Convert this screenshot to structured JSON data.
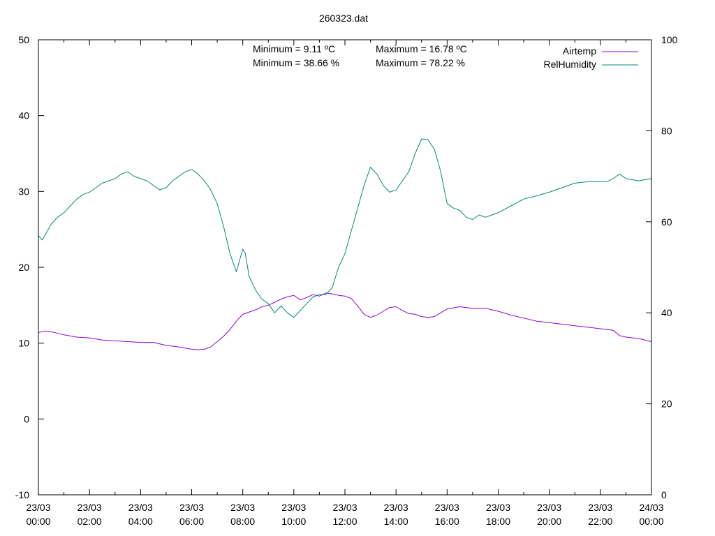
{
  "chart_data": {
    "type": "line",
    "title": "260323.dat",
    "x_ticks": [
      {
        "hours": 0,
        "date": "23/03",
        "time": "00:00"
      },
      {
        "hours": 2,
        "date": "23/03",
        "time": "02:00"
      },
      {
        "hours": 4,
        "date": "23/03",
        "time": "04:00"
      },
      {
        "hours": 6,
        "date": "23/03",
        "time": "06:00"
      },
      {
        "hours": 8,
        "date": "23/03",
        "time": "08:00"
      },
      {
        "hours": 10,
        "date": "23/03",
        "time": "10:00"
      },
      {
        "hours": 12,
        "date": "23/03",
        "time": "12:00"
      },
      {
        "hours": 14,
        "date": "23/03",
        "time": "14:00"
      },
      {
        "hours": 16,
        "date": "23/03",
        "time": "16:00"
      },
      {
        "hours": 18,
        "date": "23/03",
        "time": "18:00"
      },
      {
        "hours": 20,
        "date": "23/03",
        "time": "20:00"
      },
      {
        "hours": 22,
        "date": "23/03",
        "time": "22:00"
      },
      {
        "hours": 24,
        "date": "24/03",
        "time": "00:00"
      }
    ],
    "xlim": [
      0,
      24
    ],
    "y1lim": [
      -10,
      50
    ],
    "y1_ticks": [
      -10,
      0,
      10,
      20,
      30,
      40,
      50
    ],
    "y2lim": [
      0,
      100
    ],
    "y2_ticks": [
      0,
      20,
      40,
      60,
      80,
      100
    ],
    "legend_position": "top-right",
    "grid": false,
    "annotations": [
      "Minimum = 9.11 ºC",
      "Maximum = 16.78 ºC",
      "Minimum = 38.66 %",
      "Maximum = 78.22 %"
    ],
    "series": [
      {
        "name": "Airtemp",
        "axis": "y1",
        "color": "#9400d3",
        "x": [
          0,
          0.25,
          0.5,
          1,
          1.5,
          2,
          2.5,
          3,
          3.5,
          4,
          4.5,
          5,
          5.5,
          6,
          6.25,
          6.5,
          6.75,
          7,
          7.25,
          7.5,
          7.75,
          8,
          8.25,
          8.5,
          8.75,
          9,
          9.25,
          9.5,
          9.75,
          10,
          10.25,
          10.5,
          10.75,
          11,
          11.25,
          11.5,
          11.75,
          12,
          12.25,
          12.5,
          12.75,
          13,
          13.25,
          13.5,
          13.75,
          14,
          14.25,
          14.5,
          14.75,
          15,
          15.25,
          15.5,
          15.75,
          16,
          16.5,
          17,
          17.5,
          18,
          18.5,
          19,
          19.5,
          20,
          20.5,
          21,
          21.5,
          22,
          22.25,
          22.5,
          22.75,
          23,
          23.5,
          24
        ],
        "y": [
          11.4,
          11.6,
          11.5,
          11.1,
          10.8,
          10.7,
          10.4,
          10.3,
          10.2,
          10.1,
          10.1,
          9.7,
          9.5,
          9.2,
          9.11,
          9.2,
          9.5,
          10.2,
          10.9,
          11.8,
          12.9,
          13.8,
          14.1,
          14.4,
          14.8,
          15.0,
          15.4,
          15.8,
          16.1,
          16.3,
          15.7,
          16.0,
          16.4,
          16.2,
          16.6,
          16.5,
          16.3,
          16.2,
          15.9,
          14.9,
          13.8,
          13.4,
          13.7,
          14.2,
          14.7,
          14.8,
          14.3,
          13.9,
          13.8,
          13.5,
          13.4,
          13.5,
          14.0,
          14.5,
          14.8,
          14.6,
          14.6,
          14.2,
          13.7,
          13.3,
          12.9,
          12.7,
          12.5,
          12.3,
          12.1,
          11.9,
          11.8,
          11.7,
          11.0,
          10.8,
          10.6,
          10.2
        ]
      },
      {
        "name": "RelHumidity",
        "axis": "y2",
        "color": "#008b75",
        "x": [
          0,
          0.15,
          0.3,
          0.5,
          0.75,
          1,
          1.25,
          1.5,
          1.75,
          2,
          2.25,
          2.5,
          2.75,
          3,
          3.25,
          3.5,
          3.75,
          4,
          4.25,
          4.5,
          4.75,
          5,
          5.25,
          5.5,
          5.75,
          6,
          6.25,
          6.5,
          6.75,
          7,
          7.25,
          7.5,
          7.75,
          8,
          8.1,
          8.25,
          8.5,
          8.75,
          9,
          9.25,
          9.5,
          9.75,
          10,
          10.25,
          10.5,
          10.75,
          11,
          11.25,
          11.5,
          11.75,
          12,
          12.25,
          12.5,
          12.75,
          13,
          13.25,
          13.5,
          13.75,
          14,
          14.25,
          14.5,
          14.75,
          15,
          15.25,
          15.5,
          15.75,
          16,
          16.25,
          16.5,
          16.75,
          17,
          17.25,
          17.5,
          17.75,
          18,
          18.5,
          19,
          19.5,
          20,
          20.5,
          21,
          21.5,
          22,
          22.25,
          22.5,
          22.75,
          23,
          23.5,
          24
        ],
        "y": [
          57.0,
          56.0,
          57.5,
          59.5,
          61.0,
          62.0,
          63.5,
          65.0,
          66.0,
          66.5,
          67.5,
          68.5,
          69.0,
          69.5,
          70.5,
          71.0,
          70.0,
          69.5,
          69.0,
          68.0,
          67.0,
          67.5,
          69.0,
          70.0,
          71.0,
          71.5,
          70.5,
          69.0,
          67.0,
          64.0,
          59.0,
          53.0,
          49.0,
          54.0,
          53.0,
          48.0,
          45.0,
          43.0,
          42.0,
          40.0,
          41.5,
          40.0,
          39.0,
          40.5,
          42.0,
          43.5,
          44.0,
          44.0,
          45.5,
          50.0,
          53.0,
          58.0,
          63.0,
          68.0,
          72.0,
          70.5,
          68.0,
          66.5,
          67.0,
          69.0,
          71.0,
          75.0,
          78.22,
          78.0,
          76.0,
          71.0,
          64.0,
          63.0,
          62.5,
          61.0,
          60.5,
          61.5,
          61.0,
          61.5,
          62.0,
          63.5,
          65.0,
          65.7,
          66.5,
          67.5,
          68.5,
          68.8,
          68.8,
          68.8,
          69.5,
          70.5,
          69.5,
          69.0,
          69.5
        ]
      }
    ]
  }
}
